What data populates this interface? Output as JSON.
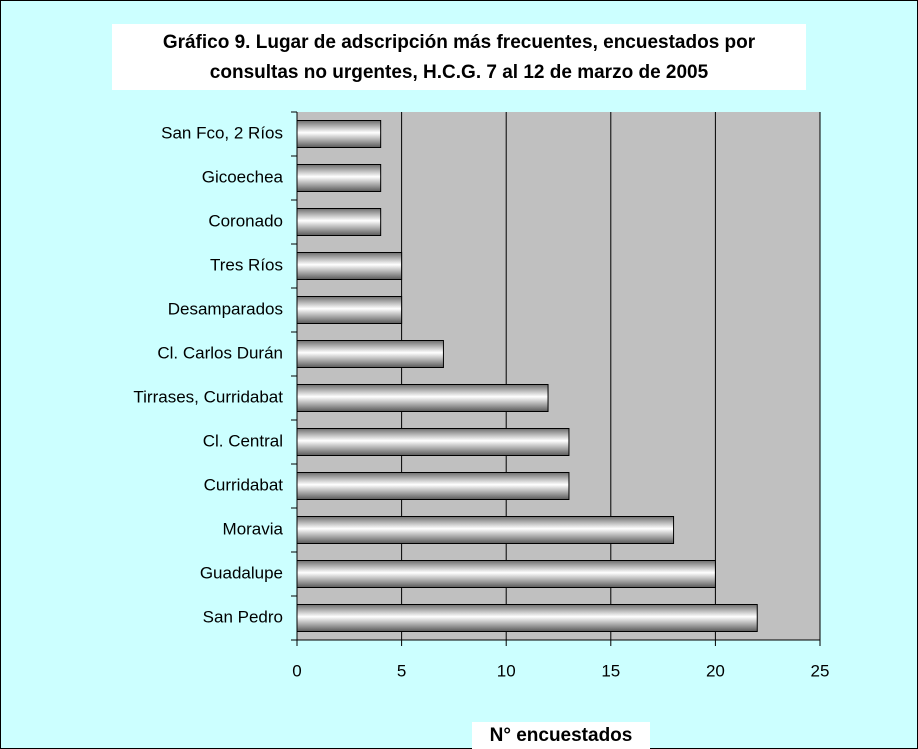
{
  "chart_data": {
    "type": "bar",
    "orientation": "horizontal",
    "title": [
      "Gráfico 9. Lugar de adscripción más frecuentes, encuestados por",
      "consultas no urgentes, H.C.G.  7 al 12 de marzo de 2005"
    ],
    "x_label": "N° encuestados",
    "categories": [
      "San Fco, 2 Ríos",
      "Gicoechea",
      "Coronado",
      "Tres Ríos",
      "Desamparados",
      "Cl. Carlos Durán",
      "Tirrases, Curridabat",
      "Cl. Central",
      "Curridabat",
      "Moravia",
      "Guadalupe",
      "San Pedro"
    ],
    "values": [
      4,
      4,
      4,
      5,
      5,
      7,
      12,
      13,
      13,
      18,
      20,
      22
    ],
    "color": "#c0c0c0",
    "xlim": [
      0,
      25
    ],
    "xticks": [
      0,
      5,
      10,
      15,
      20,
      25
    ],
    "grid": true
  }
}
